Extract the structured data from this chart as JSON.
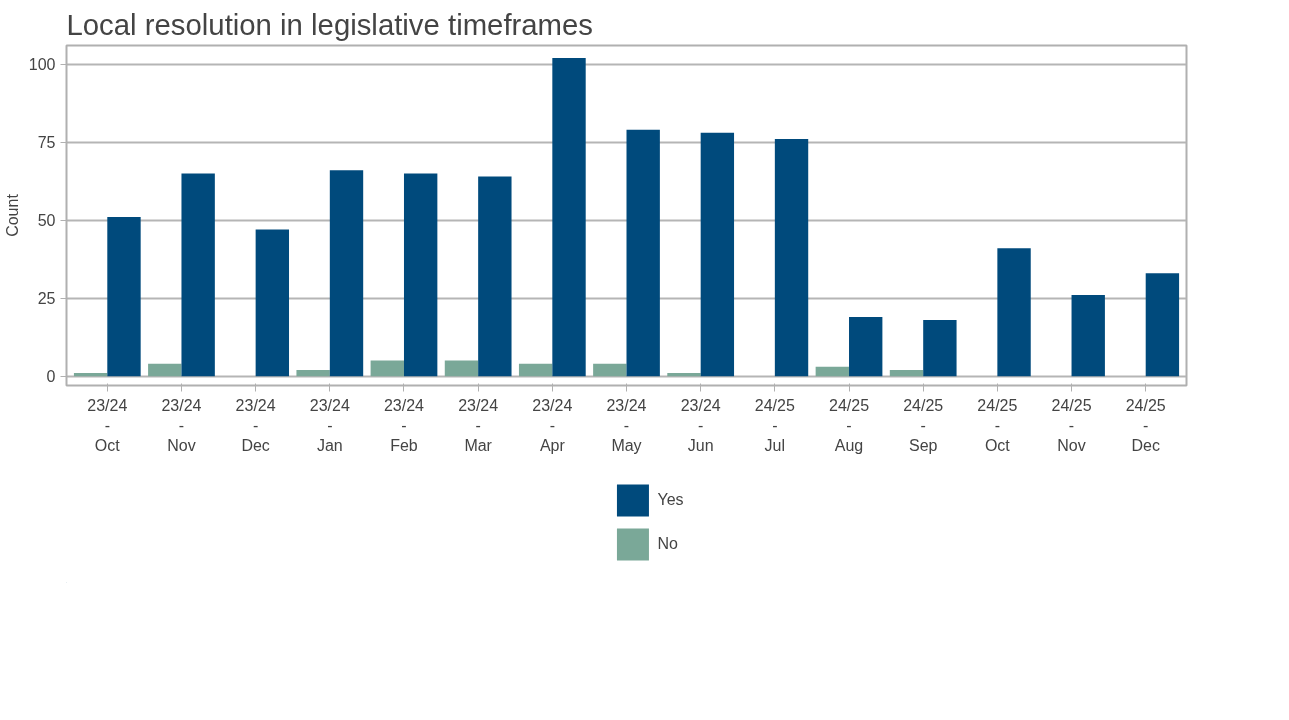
{
  "chart_data": {
    "type": "bar",
    "title": "Local resolution in legislative timeframes",
    "ylabel": "Count",
    "categories": [
      "23/24\n-\nOct",
      "23/24\n-\nNov",
      "23/24\n-\nDec",
      "23/24\n-\nJan",
      "23/24\n-\nFeb",
      "23/24\n-\nMar",
      "23/24\n-\nApr",
      "23/24\n-\nMay",
      "23/24\n-\nJun",
      "24/25\n-\nJul",
      "24/25\n-\nAug",
      "24/25\n-\nSep",
      "24/25\n-\nOct",
      "24/25\n-\nNov",
      "24/25\n-\nDec"
    ],
    "series": [
      {
        "name": "No",
        "color": "#7aa898",
        "values": [
          1,
          4,
          0,
          2,
          5,
          5,
          4,
          4,
          1,
          0,
          3,
          2,
          0,
          0,
          0
        ]
      },
      {
        "name": "Yes",
        "color": "#004a7c",
        "values": [
          51,
          65,
          47,
          66,
          65,
          64,
          102,
          79,
          78,
          76,
          19,
          18,
          41,
          26,
          33
        ]
      }
    ],
    "ylim": [
      -3,
      106
    ],
    "yticks": [
      0,
      25,
      50,
      75,
      100
    ],
    "grid": "y",
    "legend": "bottom"
  }
}
